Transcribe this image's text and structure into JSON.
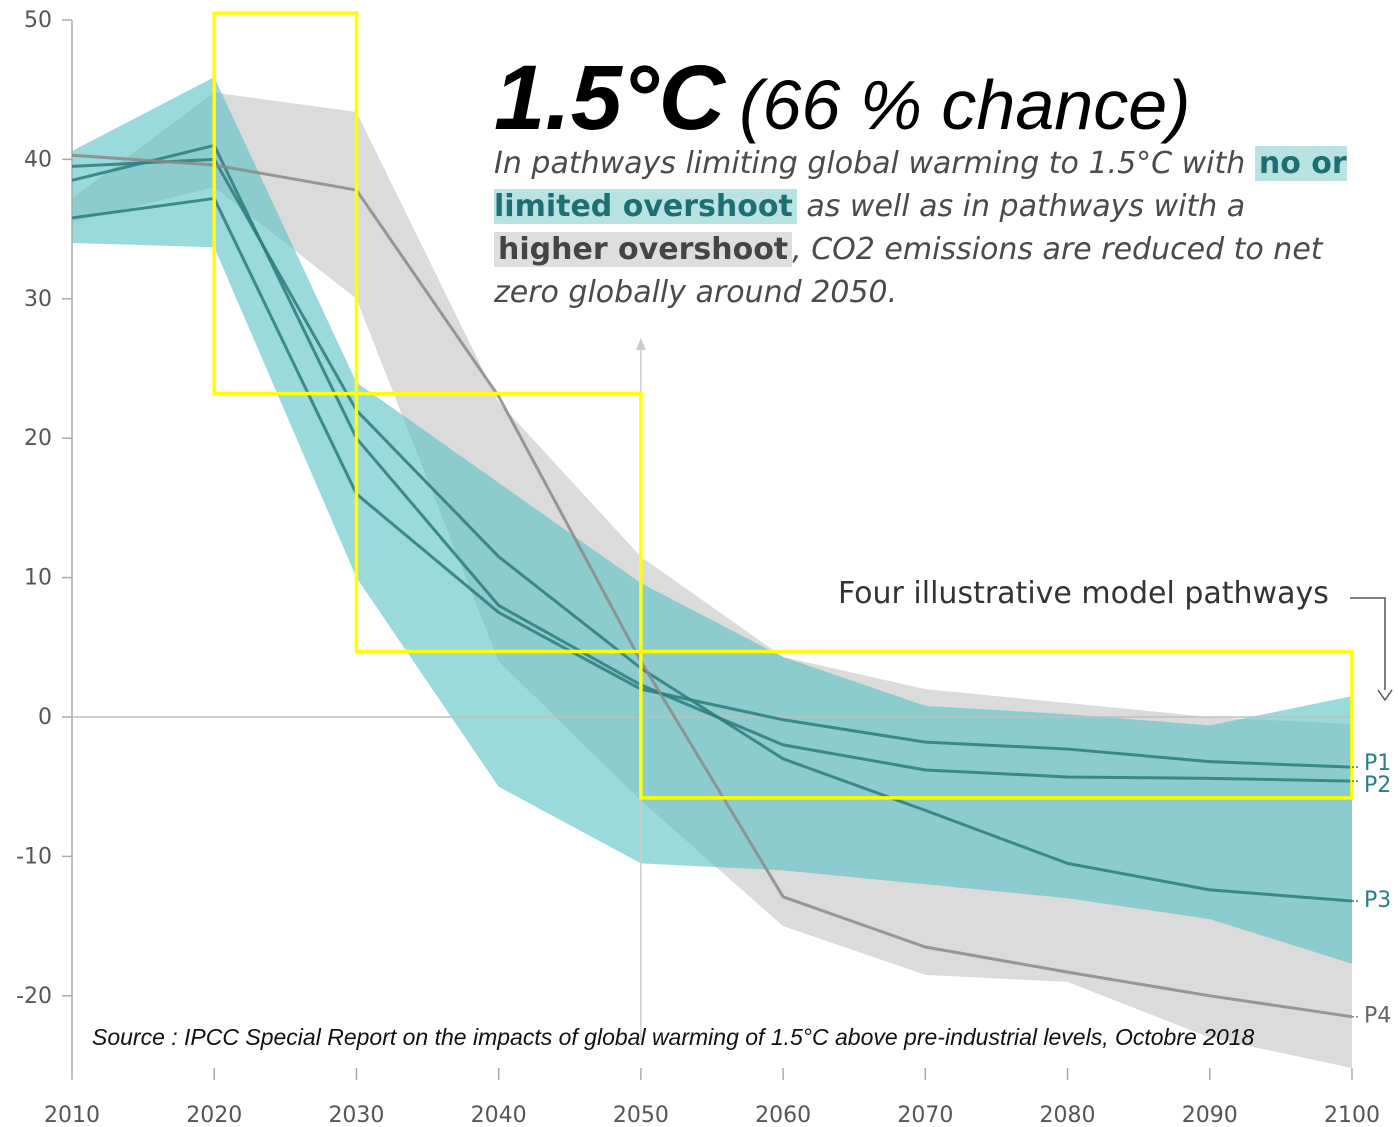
{
  "title": {
    "main": "1.5°C",
    "sub": "(66 % chance)"
  },
  "description": {
    "part1": "In pathways limiting global warming to 1.5°C with",
    "hl1": "no or limited overshoot",
    "part2": "as well as in pathways with a",
    "hl2": "higher overshoot",
    "part3": ", CO2 emissions are reduced to net zero globally around 2050."
  },
  "annotation": "Four illustrative model pathways",
  "source": "Source : IPCC Special Report on the impacts of global warming of 1.5°C above pre-industrial levels, Octobre 2018",
  "colors": {
    "teal_band": "#5ec4c6",
    "teal_line": "#2b7b80",
    "grey_band": "#bdbdbd",
    "grey_line": "#8a8a8a",
    "highlight_box": "#ffff00"
  },
  "chart_data": {
    "type": "line",
    "xlim": [
      2010,
      2100
    ],
    "ylim": [
      -25,
      50
    ],
    "x_ticks": [
      2010,
      2020,
      2030,
      2040,
      2050,
      2060,
      2070,
      2080,
      2090,
      2100
    ],
    "y_ticks": [
      50,
      40,
      30,
      20,
      10,
      0,
      -10,
      -20
    ],
    "x": [
      2010,
      2020,
      2030,
      2040,
      2050,
      2060,
      2070,
      2080,
      2090,
      2100
    ],
    "series": [
      {
        "name": "P1",
        "values": [
          35.8,
          37.2,
          16.0,
          7.5,
          2.0,
          -0.2,
          -1.8,
          -2.3,
          -3.2,
          -3.6
        ]
      },
      {
        "name": "P2",
        "values": [
          38.5,
          41.0,
          20.0,
          8.0,
          2.3,
          -2.0,
          -3.8,
          -4.3,
          -4.4,
          -4.6
        ]
      },
      {
        "name": "P3",
        "values": [
          39.5,
          40.0,
          22.0,
          11.5,
          3.5,
          -3.0,
          -6.7,
          -10.5,
          -12.4,
          -13.2
        ]
      },
      {
        "name": "P4",
        "values": [
          40.3,
          39.6,
          37.8,
          23.0,
          4.0,
          -12.9,
          -16.5,
          -18.3,
          -20.0,
          -21.5
        ]
      }
    ],
    "bands": [
      {
        "kind": "higher overshoot",
        "upper": [
          37.2,
          44.8,
          43.4,
          22.6,
          11.5,
          4.3,
          2.0,
          1.0,
          0.0,
          -0.5
        ],
        "lower": [
          35.5,
          38.0,
          30.0,
          4.0,
          -6.0,
          -15.0,
          -18.5,
          -19.0,
          -23.0,
          -28.0
        ]
      },
      {
        "kind": "no or limited overshoot",
        "upper": [
          40.6,
          45.9,
          24.0,
          16.8,
          9.6,
          4.3,
          0.8,
          0.2,
          -0.6,
          1.5
        ],
        "lower": [
          34.0,
          33.7,
          10.0,
          -5.0,
          -10.5,
          -11.0,
          -12.0,
          -13.0,
          -14.5,
          -17.7
        ]
      }
    ],
    "highlight_boxes": [
      {
        "x": [
          2020,
          2030
        ],
        "y": [
          23.2,
          50.5
        ]
      },
      {
        "x": [
          2030,
          2050
        ],
        "y": [
          4.7,
          23.2
        ]
      },
      {
        "x": [
          2050,
          2100
        ],
        "y": [
          -5.8,
          4.7
        ]
      }
    ]
  }
}
